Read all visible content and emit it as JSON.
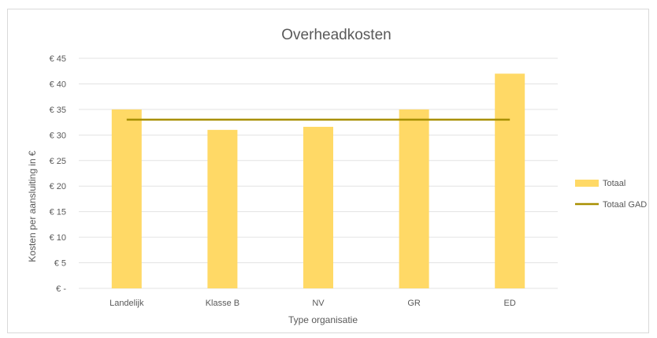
{
  "chart_data": {
    "type": "bar",
    "title": "Overheadkosten",
    "xlabel": "Type organisatie",
    "ylabel": "Kosten per aansluiting in €",
    "categories": [
      "Landelijk",
      "Klasse B",
      "NV",
      "GR",
      "ED"
    ],
    "ylim": [
      0,
      45
    ],
    "yticks": [
      0,
      5,
      10,
      15,
      20,
      25,
      30,
      35,
      40,
      45
    ],
    "ytick_labels": [
      "€ -",
      "€ 5",
      "€ 10",
      "€ 15",
      "€ 20",
      "€ 25",
      "€ 30",
      "€ 35",
      "€ 40",
      "€ 45"
    ],
    "grid": true,
    "legend_position": "right",
    "series": [
      {
        "name": "Totaal",
        "type": "bar",
        "color": "#ffd966",
        "values": [
          35,
          31,
          31.6,
          35,
          42
        ]
      },
      {
        "name": "Totaal GAD",
        "type": "line",
        "color": "#a88f00",
        "values": [
          33,
          33,
          33,
          33,
          33
        ]
      }
    ]
  }
}
